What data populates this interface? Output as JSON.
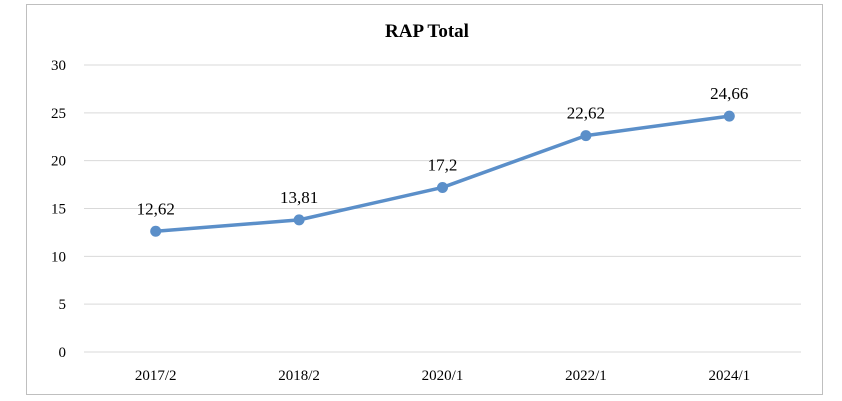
{
  "chart_data": {
    "type": "line",
    "title": "RAP Total",
    "xlabel": "",
    "ylabel": "",
    "categories": [
      "2017/2",
      "2018/2",
      "2020/1",
      "2022/1",
      "2024/1"
    ],
    "series": [
      {
        "values": [
          12.62,
          13.81,
          17.2,
          22.62,
          24.66
        ],
        "color": "#5b8fc9"
      }
    ],
    "data_labels": [
      "12,62",
      "13,81",
      "17,2",
      "22,62",
      "24,66"
    ],
    "ylim": [
      0,
      30
    ],
    "yticks": [
      0,
      5,
      10,
      15,
      20,
      25,
      30
    ],
    "grid": true,
    "legend": "none",
    "colors": {
      "line": "#5b8fc9",
      "grid": "#d9d9d9",
      "frame": "#bfbfbf"
    }
  }
}
